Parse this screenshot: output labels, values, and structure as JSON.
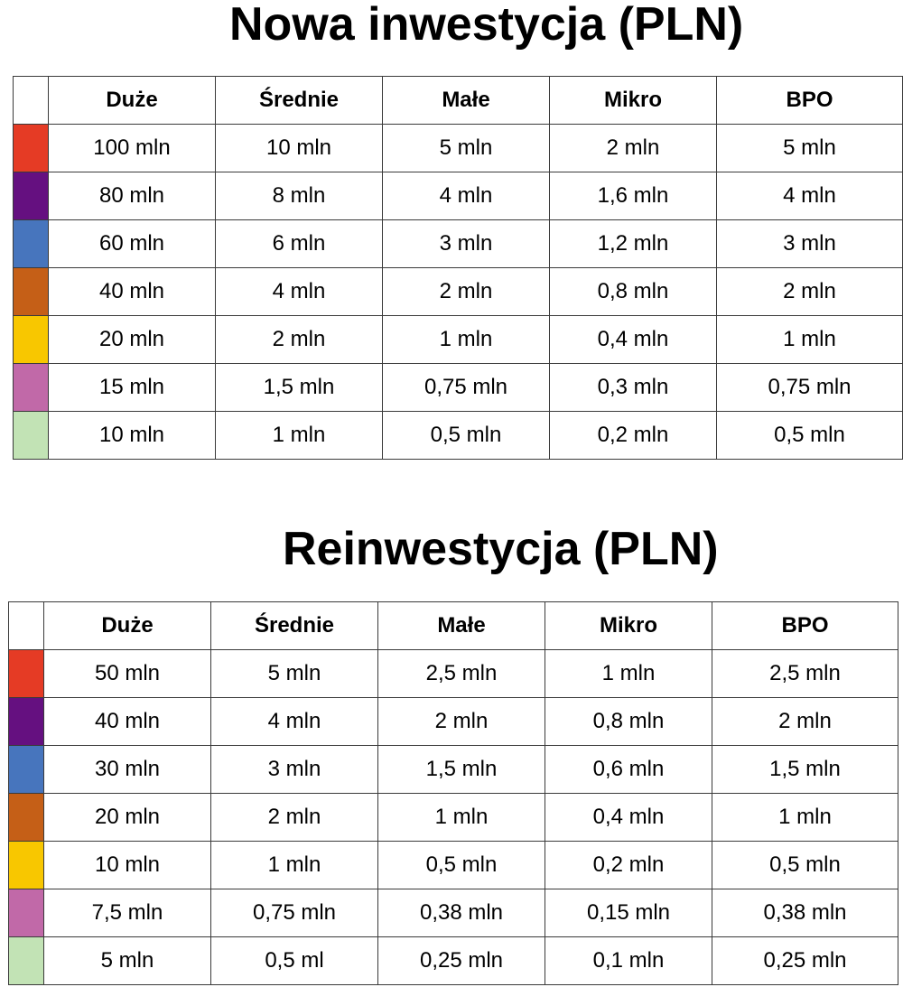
{
  "sections": [
    {
      "title": "Nowa inwestycja (PLN)",
      "headers": [
        "Duże",
        "Średnie",
        "Małe",
        "Mikro",
        "BPO"
      ],
      "rows": [
        {
          "color": "#e53b25",
          "cells": [
            "100 mln",
            "10 mln",
            "5 mln",
            "2 mln",
            "5 mln"
          ]
        },
        {
          "color": "#651080",
          "cells": [
            "80 mln",
            "8 mln",
            "4 mln",
            "1,6 mln",
            "4 mln"
          ]
        },
        {
          "color": "#4775bd",
          "cells": [
            "60 mln",
            "6 mln",
            "3 mln",
            "1,2 mln",
            "3 mln"
          ]
        },
        {
          "color": "#c55f17",
          "cells": [
            "40 mln",
            "4 mln",
            "2 mln",
            "0,8 mln",
            "2 mln"
          ]
        },
        {
          "color": "#f8c700",
          "cells": [
            "20 mln",
            "2 mln",
            "1 mln",
            "0,4 mln",
            "1 mln"
          ]
        },
        {
          "color": "#c169a8",
          "cells": [
            "15 mln",
            "1,5 mln",
            "0,75 mln",
            "0,3 mln",
            "0,75 mln"
          ]
        },
        {
          "color": "#c2e3b5",
          "cells": [
            "10 mln",
            "1 mln",
            "0,5 mln",
            "0,2 mln",
            "0,5 mln"
          ]
        }
      ]
    },
    {
      "title": "Reinwestycja (PLN)",
      "headers": [
        "Duże",
        "Średnie",
        "Małe",
        "Mikro",
        "BPO"
      ],
      "rows": [
        {
          "color": "#e53b25",
          "cells": [
            "50 mln",
            "5 mln",
            "2,5 mln",
            "1 mln",
            "2,5 mln"
          ]
        },
        {
          "color": "#651080",
          "cells": [
            "40 mln",
            "4 mln",
            "2 mln",
            "0,8 mln",
            "2 mln"
          ]
        },
        {
          "color": "#4775bd",
          "cells": [
            "30 mln",
            "3 mln",
            "1,5 mln",
            "0,6 mln",
            "1,5 mln"
          ]
        },
        {
          "color": "#c55f17",
          "cells": [
            "20 mln",
            "2 mln",
            "1 mln",
            "0,4 mln",
            "1 mln"
          ]
        },
        {
          "color": "#f8c700",
          "cells": [
            "10 mln",
            "1 mln",
            "0,5 mln",
            "0,2 mln",
            "0,5 mln"
          ]
        },
        {
          "color": "#c169a8",
          "cells": [
            "7,5 mln",
            "0,75 mln",
            "0,38 mln",
            "0,15 mln",
            "0,38 mln"
          ]
        },
        {
          "color": "#c2e3b5",
          "cells": [
            "5 mln",
            "0,5 ml",
            "0,25 mln",
            "0,1 mln",
            "0,25 mln"
          ]
        }
      ]
    }
  ]
}
